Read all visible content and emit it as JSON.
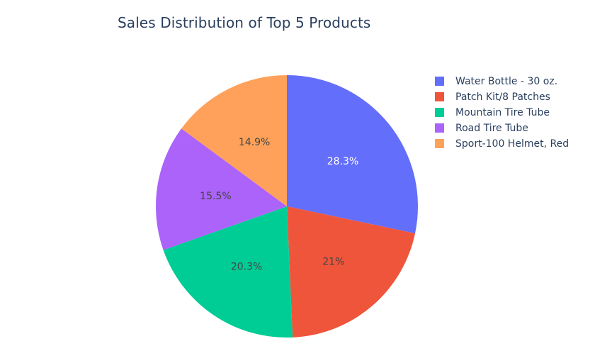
{
  "chart_data": {
    "type": "pie",
    "title": "Sales Distribution of Top 5 Products",
    "categories": [
      "Water Bottle - 30 oz.",
      "Patch Kit/8 Patches",
      "Mountain Tire Tube",
      "Road Tire Tube",
      "Sport-100 Helmet, Red"
    ],
    "values": [
      28.3,
      21.0,
      20.3,
      15.5,
      14.9
    ],
    "labels": [
      "28.3%",
      "21%",
      "20.3%",
      "15.5%",
      "14.9%"
    ],
    "colors": [
      "#636efa",
      "#ef553b",
      "#00cc96",
      "#ab63fa",
      "#ffa15a"
    ],
    "slice_order": "clockwise",
    "legend_position": "right",
    "legend_order": [
      "Water Bottle - 30 oz.",
      "Patch Kit/8 Patches",
      "Mountain Tire Tube",
      "Road Tire Tube",
      "Sport-100 Helmet, Red"
    ]
  }
}
